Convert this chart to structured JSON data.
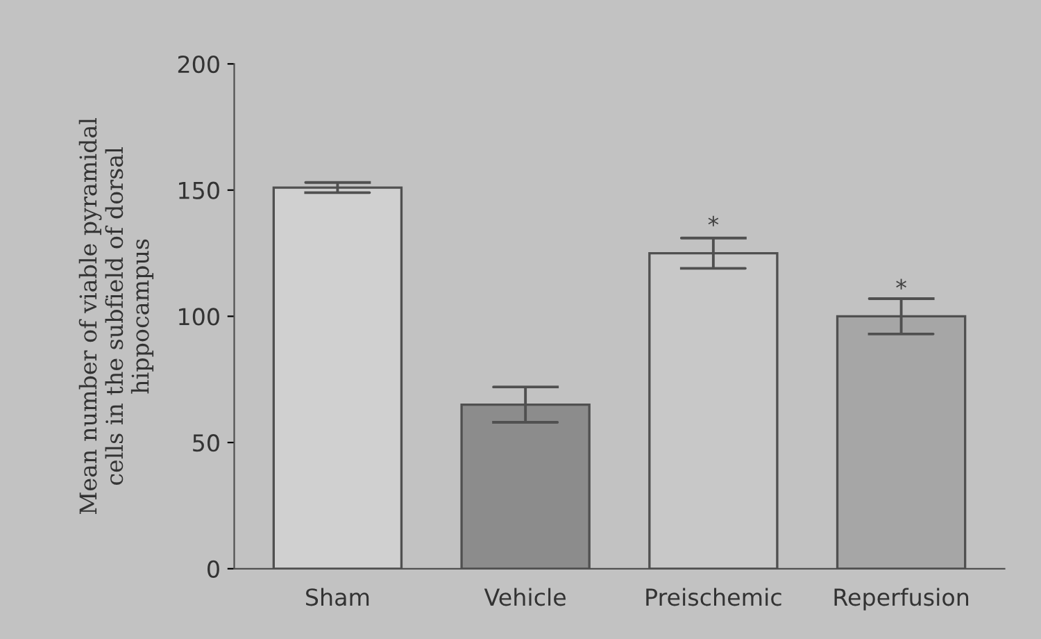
{
  "chart_data": {
    "type": "bar",
    "ylabel": "Mean number of viable pyramidal\ncells in the subfield of dorsal\nhippocampus",
    "categories": [
      "Sham",
      "Vehicle",
      "Preischemic",
      "Reperfusion"
    ],
    "values": [
      151,
      65,
      125,
      100
    ],
    "errors": [
      2,
      7,
      6,
      7
    ],
    "colors": [
      "#d0d0d0",
      "#8c8c8c",
      "#c8c8c8",
      "#a6a6a6"
    ],
    "ylim": [
      0,
      200
    ],
    "yticks": [
      0,
      50,
      100,
      150,
      200
    ],
    "value_labels": [
      null,
      null,
      "*",
      "*"
    ],
    "grid": false,
    "legend": false
  }
}
